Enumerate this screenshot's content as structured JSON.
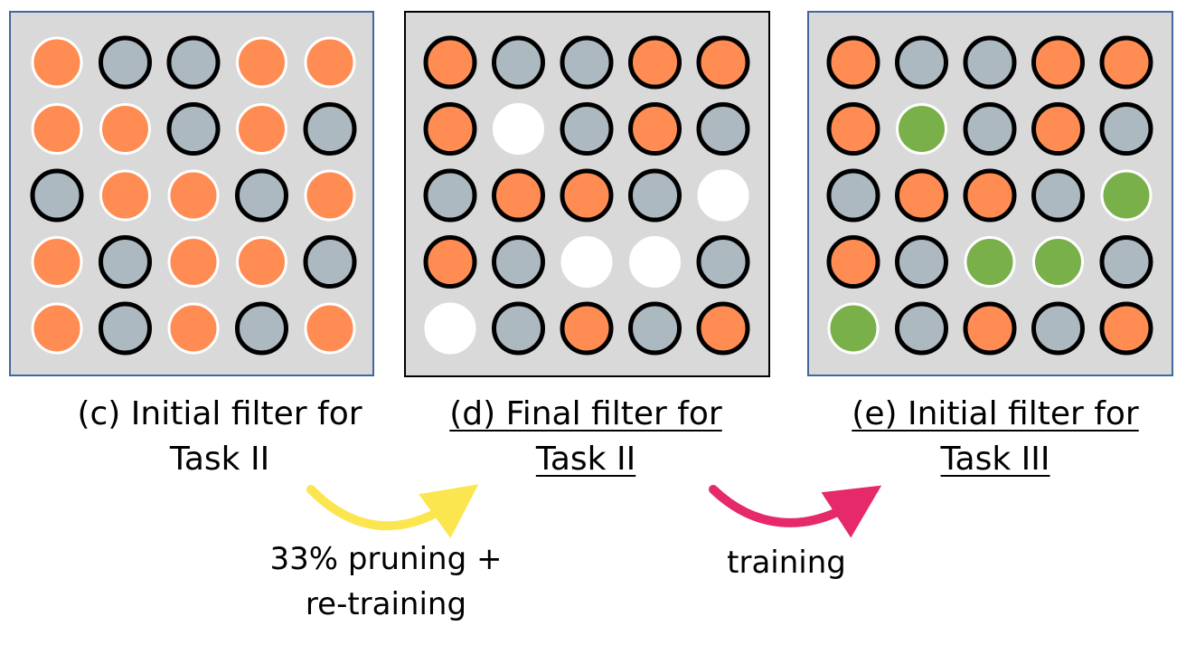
{
  "colors": {
    "orange": "#ff8c52",
    "gray": "#adb9c1",
    "green": "#79b04a",
    "white": "#ffffff",
    "arrow_yellow": "#fbe64f",
    "arrow_pink": "#e5296b"
  },
  "panels": [
    {
      "id": "c",
      "caption_line1": "(c) Initial filter for",
      "caption_line2": "Task II",
      "underlined": false,
      "grid": [
        [
          "orange",
          "gray",
          "gray",
          "orange",
          "orange"
        ],
        [
          "orange",
          "orange",
          "gray",
          "orange",
          "gray"
        ],
        [
          "gray",
          "orange",
          "orange",
          "gray",
          "orange"
        ],
        [
          "orange",
          "gray",
          "orange",
          "orange",
          "gray"
        ],
        [
          "orange",
          "gray",
          "orange",
          "gray",
          "orange"
        ]
      ],
      "bordered": [
        [
          false,
          true,
          true,
          false,
          false
        ],
        [
          false,
          false,
          true,
          false,
          true
        ],
        [
          true,
          false,
          false,
          true,
          false
        ],
        [
          false,
          true,
          false,
          false,
          true
        ],
        [
          false,
          true,
          false,
          true,
          false
        ]
      ]
    },
    {
      "id": "d",
      "caption_line1": "(d) Final filter for",
      "caption_line2": "Task II",
      "underlined": true,
      "grid": [
        [
          "orange",
          "gray",
          "gray",
          "orange",
          "orange"
        ],
        [
          "orange",
          "white",
          "gray",
          "orange",
          "gray"
        ],
        [
          "gray",
          "orange",
          "orange",
          "gray",
          "white"
        ],
        [
          "orange",
          "gray",
          "white",
          "white",
          "gray"
        ],
        [
          "white",
          "gray",
          "orange",
          "gray",
          "orange"
        ]
      ],
      "bordered": [
        [
          true,
          true,
          true,
          true,
          true
        ],
        [
          true,
          false,
          true,
          true,
          true
        ],
        [
          true,
          true,
          true,
          true,
          false
        ],
        [
          true,
          true,
          false,
          false,
          true
        ],
        [
          false,
          true,
          true,
          true,
          true
        ]
      ]
    },
    {
      "id": "e",
      "caption_line1": "(e) Initial filter for",
      "caption_line2": "Task III",
      "underlined": true,
      "grid": [
        [
          "orange",
          "gray",
          "gray",
          "orange",
          "orange"
        ],
        [
          "orange",
          "green",
          "gray",
          "orange",
          "gray"
        ],
        [
          "gray",
          "orange",
          "orange",
          "gray",
          "green"
        ],
        [
          "orange",
          "gray",
          "green",
          "green",
          "gray"
        ],
        [
          "green",
          "gray",
          "orange",
          "gray",
          "orange"
        ]
      ],
      "bordered": [
        [
          true,
          true,
          true,
          true,
          true
        ],
        [
          true,
          false,
          true,
          true,
          true
        ],
        [
          true,
          true,
          true,
          true,
          false
        ],
        [
          true,
          true,
          false,
          false,
          true
        ],
        [
          false,
          true,
          true,
          true,
          true
        ]
      ]
    }
  ],
  "arrows": {
    "prune_label_line1": "33% pruning +",
    "prune_label_line2": "re-training",
    "train_label": "training"
  }
}
